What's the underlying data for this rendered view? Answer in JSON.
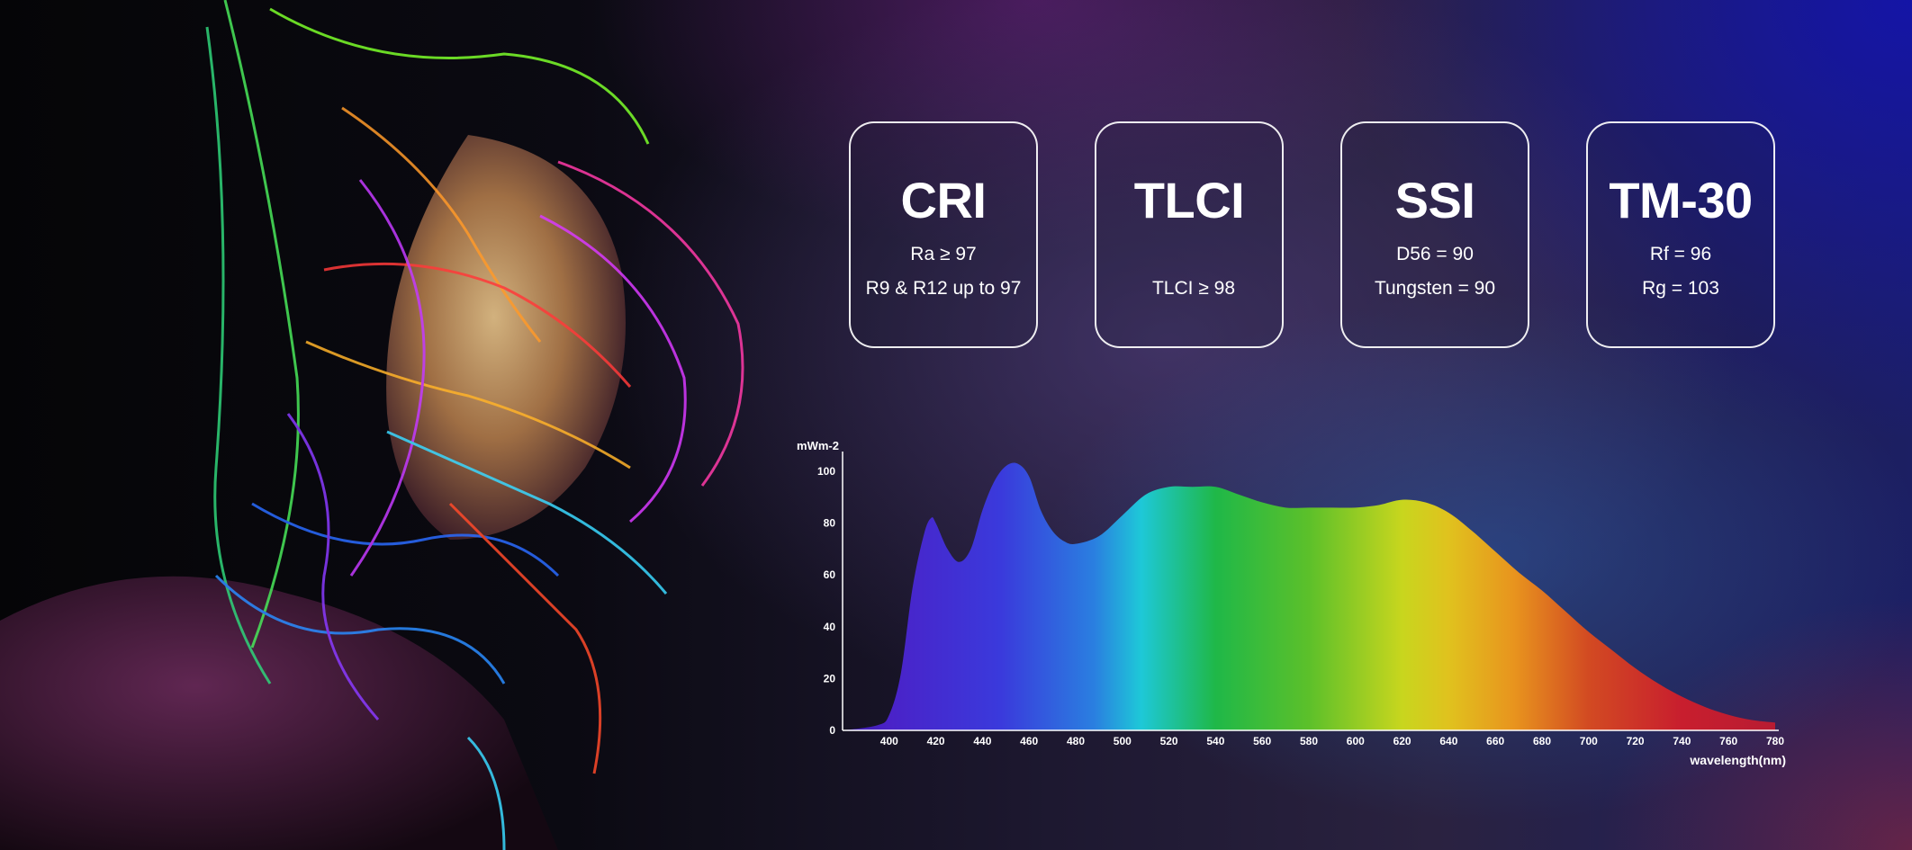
{
  "metrics": [
    {
      "title": "CRI",
      "line1": "Ra ≥ 97",
      "line2": "R9 & R12 up to 97"
    },
    {
      "title": "TLCI",
      "line1": "",
      "line2": "TLCI ≥ 98"
    },
    {
      "title": "SSI",
      "line1": "D56 = 90",
      "line2": "Tungsten = 90"
    },
    {
      "title": "TM-30",
      "line1": "Rf = 96",
      "line2": "Rg = 103"
    }
  ],
  "chart_data": {
    "type": "area",
    "ylabel": "mWm-2",
    "xlabel": "wavelength(nm)",
    "xlim": [
      380,
      780
    ],
    "ylim": [
      0,
      100
    ],
    "xticks": [
      "400",
      "420",
      "440",
      "460",
      "480",
      "500",
      "520",
      "540",
      "560",
      "580",
      "600",
      "620",
      "640",
      "660",
      "680",
      "700",
      "720",
      "740",
      "760",
      "780"
    ],
    "yticks": [
      "0",
      "20",
      "40",
      "60",
      "80",
      "100"
    ],
    "x": [
      380,
      395,
      400,
      405,
      410,
      415,
      418,
      420,
      425,
      430,
      435,
      440,
      445,
      450,
      455,
      460,
      465,
      470,
      475,
      480,
      490,
      500,
      510,
      520,
      530,
      540,
      550,
      560,
      570,
      580,
      590,
      600,
      610,
      620,
      630,
      640,
      650,
      660,
      670,
      680,
      690,
      700,
      710,
      720,
      730,
      740,
      750,
      760,
      770,
      780
    ],
    "values": [
      0,
      2,
      6,
      22,
      55,
      76,
      82,
      80,
      70,
      65,
      70,
      85,
      96,
      102,
      103,
      98,
      85,
      77,
      73,
      72,
      75,
      83,
      91,
      94,
      94,
      94,
      91,
      88,
      86,
      86,
      86,
      86,
      87,
      89,
      88,
      84,
      77,
      69,
      61,
      54,
      46,
      38,
      31,
      24,
      18,
      13,
      9,
      6,
      4,
      3
    ],
    "grid": false
  },
  "colors": {
    "axis": "#ffffff",
    "card_border": "#ffffff"
  }
}
